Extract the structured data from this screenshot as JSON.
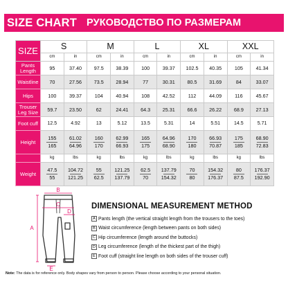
{
  "title": {
    "en": "SIZE CHART",
    "ru": "РУКОВОДСТВО ПО РАЗМЕРАМ"
  },
  "table": {
    "corner_label": "SIZE",
    "sizes": [
      "S",
      "M",
      "L",
      "XL",
      "XXL"
    ],
    "unit_labels": [
      "cm",
      "in"
    ],
    "rows": [
      {
        "label": "Pants Length",
        "values": [
          "95",
          "37.40",
          "97.5",
          "38.39",
          "100",
          "39.37",
          "102.5",
          "40.35",
          "105",
          "41.34"
        ]
      },
      {
        "label": "Waistline",
        "values": [
          "70",
          "27.56",
          "73.5",
          "28.94",
          "77",
          "30.31",
          "80.5",
          "31.69",
          "84",
          "33.07"
        ]
      },
      {
        "label": "Hips",
        "values": [
          "100",
          "39.37",
          "104",
          "40.94",
          "108",
          "42.52",
          "112",
          "44.09",
          "116",
          "45.67"
        ]
      },
      {
        "label": "Trouser Leg Size",
        "values": [
          "59.7",
          "23.50",
          "62",
          "24.41",
          "64.3",
          "25.31",
          "66.6",
          "26.22",
          "68.9",
          "27.13"
        ]
      },
      {
        "label": "Foot cuff",
        "values": [
          "12.5",
          "4.92",
          "13",
          "5.12",
          "13.5",
          "5.31",
          "14",
          "5.51",
          "14.5",
          "5.71"
        ]
      }
    ],
    "height": {
      "label": "Height",
      "values": [
        [
          "155",
          "165"
        ],
        [
          "61.02",
          "64.96"
        ],
        [
          "160",
          "170"
        ],
        [
          "62.99",
          "66.93"
        ],
        [
          "165",
          "175"
        ],
        [
          "64.96",
          "68.90"
        ],
        [
          "170",
          "180"
        ],
        [
          "66.93",
          "70.87"
        ],
        [
          "175",
          "185"
        ],
        [
          "68.90",
          "72.83"
        ]
      ]
    },
    "weight_unit_labels": [
      "kg",
      "lbs"
    ],
    "weight": {
      "label": "Weight",
      "values": [
        [
          "47.5",
          "55"
        ],
        [
          "104.72",
          "121.25"
        ],
        [
          "55",
          "62.5"
        ],
        [
          "121.25",
          "137.79"
        ],
        [
          "62.5",
          "70"
        ],
        [
          "137.79",
          "154.32"
        ],
        [
          "70",
          "80"
        ],
        [
          "154.32",
          "176.37"
        ],
        [
          "80",
          "87.5"
        ],
        [
          "176.37",
          "192.90"
        ]
      ]
    }
  },
  "diagram": {
    "letters": [
      "A",
      "B",
      "C",
      "D",
      "E"
    ],
    "line_color": "#e8136e"
  },
  "method": {
    "heading": "DIMENSIONAL MEASUREMENT METHOD",
    "items": [
      {
        "key": "A",
        "text": "Pants length (the vertical straight length from the trousers to the toes)"
      },
      {
        "key": "B",
        "text": "Waist circumference (length between pants on both sides)"
      },
      {
        "key": "C",
        "text": "Hip circumference (length around the buttocks)"
      },
      {
        "key": "D",
        "text": "Leg circumference (length of the thickest part of the thigh)"
      },
      {
        "key": "E",
        "text": "Foot cuff (straight line length on both sides of the trouser cuff)"
      }
    ]
  },
  "note": {
    "label": "Note:",
    "text": "The data is for reference only. Body shapes vary from person to person. Please choose according to your personal situation."
  },
  "colors": {
    "accent": "#e8136e",
    "row_shade": "#e6e6e6"
  }
}
